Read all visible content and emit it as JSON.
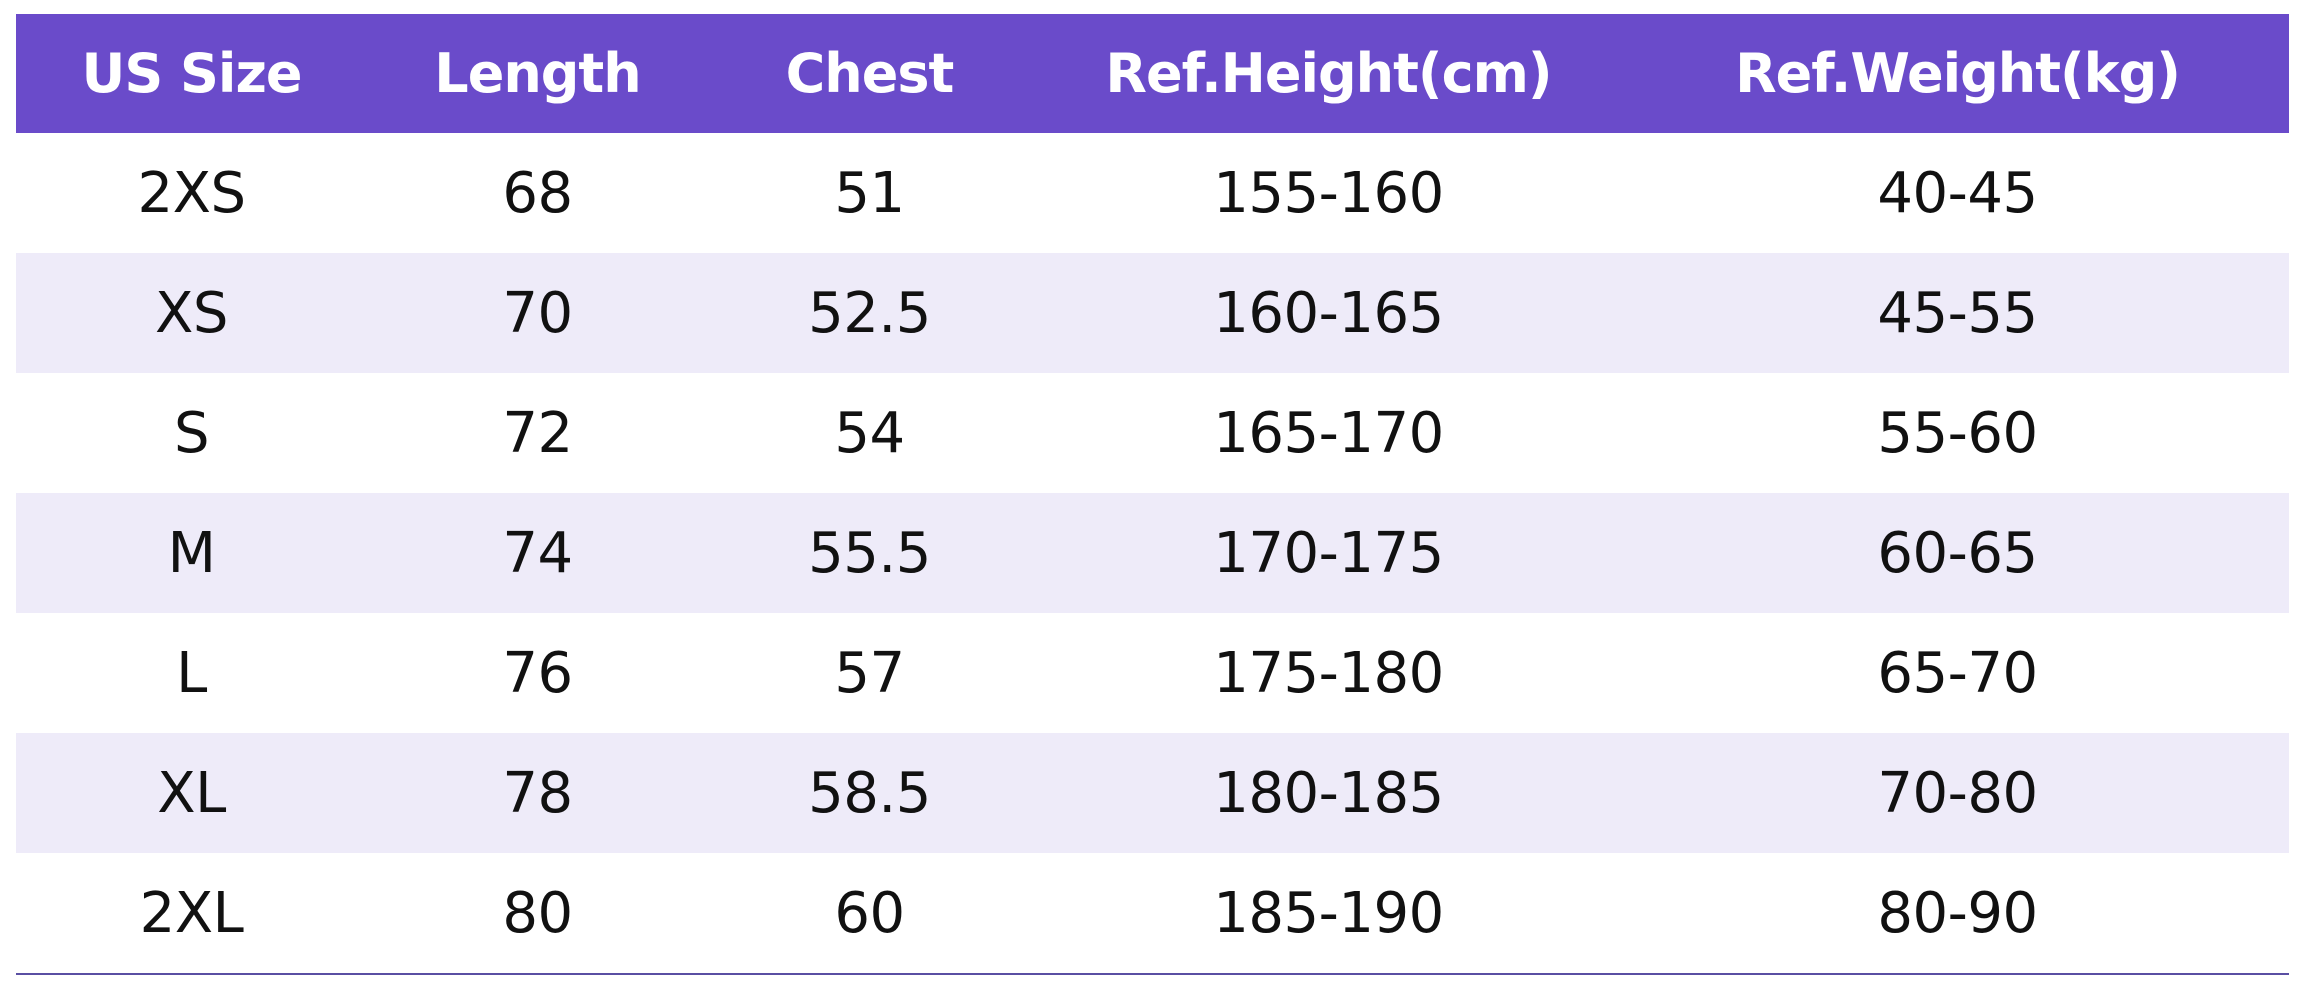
{
  "colors": {
    "header_background": "#6a4bca",
    "header_text": "#ffffff",
    "row_alternate_background": "#eeebf9",
    "row_background": "#ffffff",
    "bottom_rule": "#5a4fa3"
  },
  "table": {
    "headers": [
      "US Size",
      "Length",
      "Chest",
      "Ref.Height(cm)",
      "Ref.Weight(kg)"
    ],
    "rows": [
      [
        "2XS",
        "68",
        "51",
        "155-160",
        "40-45"
      ],
      [
        "XS",
        "70",
        "52.5",
        "160-165",
        "45-55"
      ],
      [
        "S",
        "72",
        "54",
        "165-170",
        "55-60"
      ],
      [
        "M",
        "74",
        "55.5",
        "170-175",
        "60-65"
      ],
      [
        "L",
        "76",
        "57",
        "175-180",
        "65-70"
      ],
      [
        "XL",
        "78",
        "58.5",
        "180-185",
        "70-80"
      ],
      [
        "2XL",
        "80",
        "60",
        "185-190",
        "80-90"
      ]
    ]
  }
}
